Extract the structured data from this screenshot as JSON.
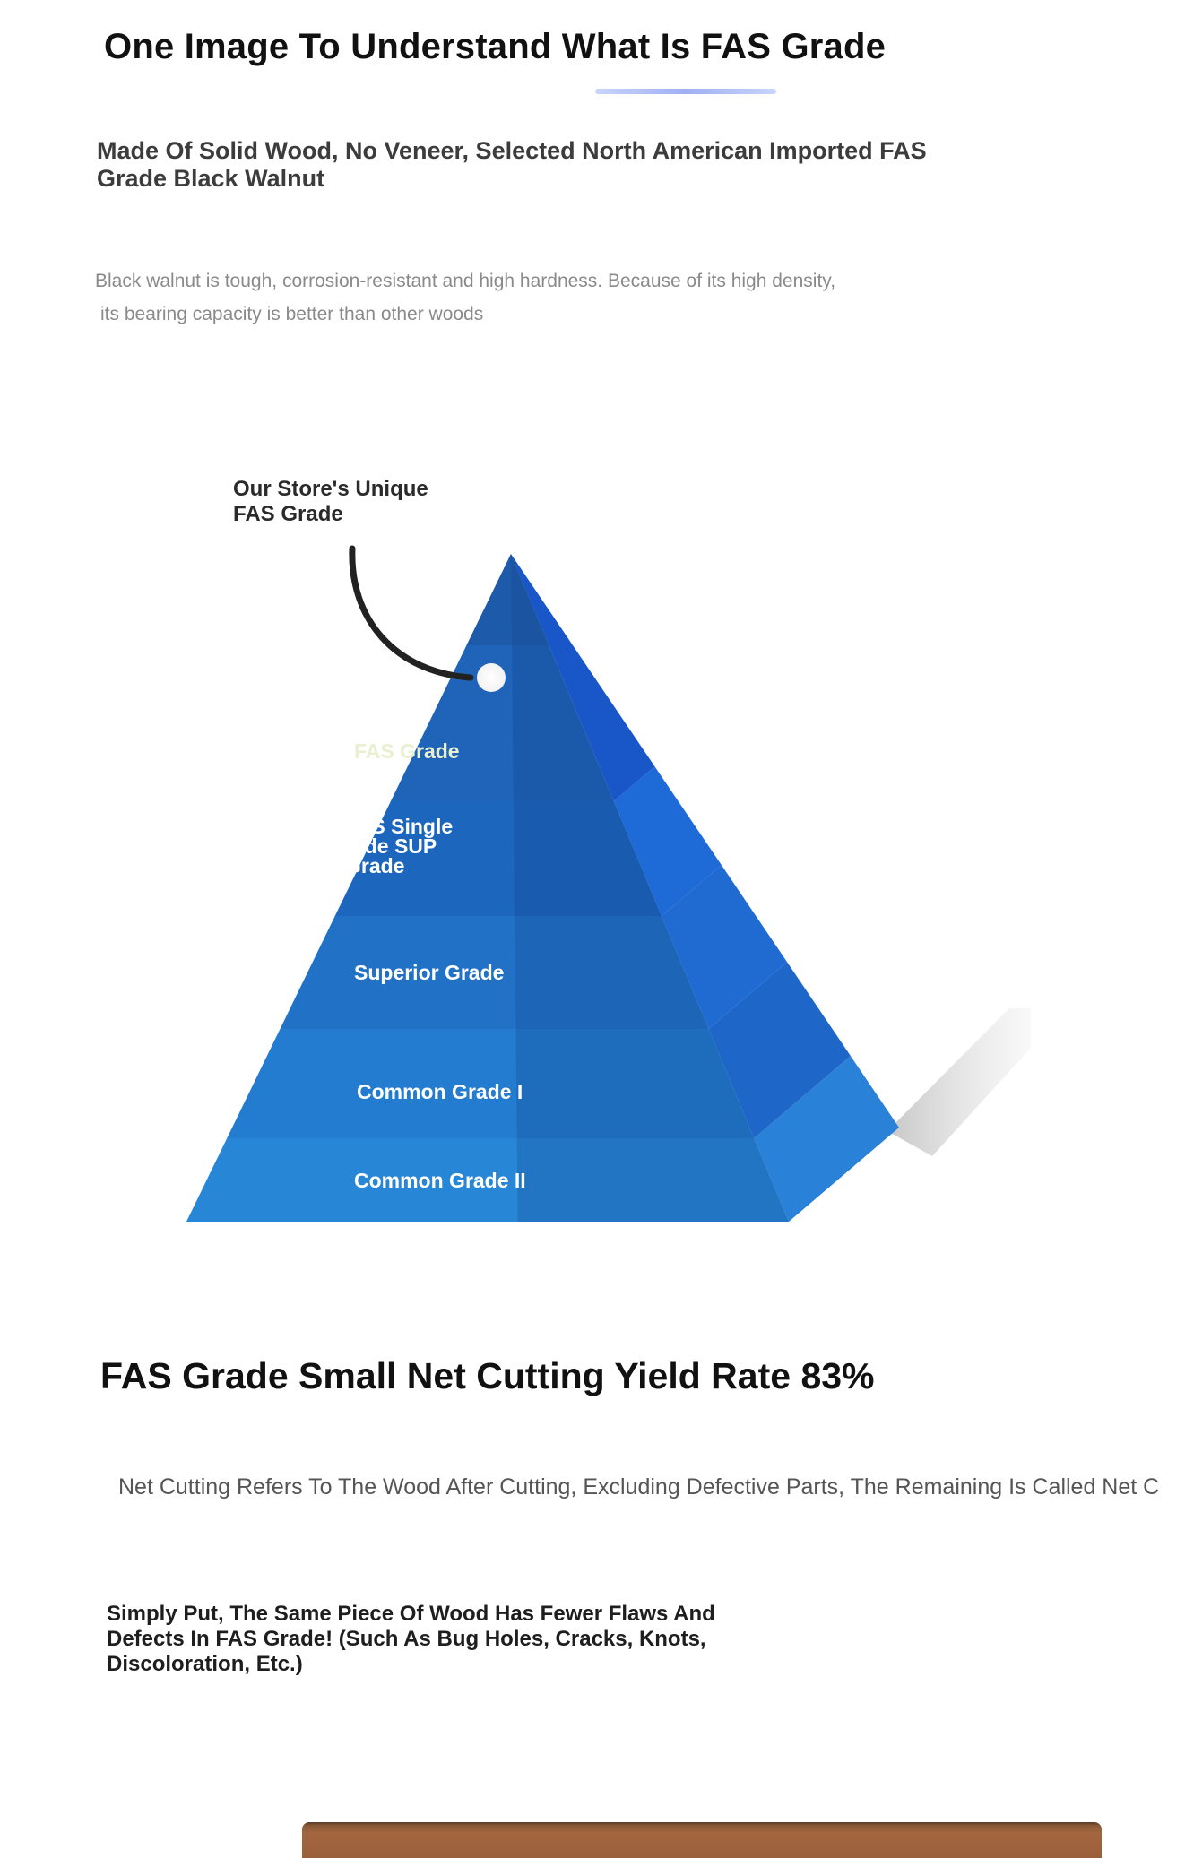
{
  "header": {
    "title": "One Image To Understand What Is FAS Grade"
  },
  "intro": {
    "subtitle": "Made Of Solid Wood, No Veneer, Selected North American Imported FAS Grade Black Walnut",
    "description_line1": "Black walnut is tough, corrosion-resistant and high hardness. Because of its high density,",
    "description_line2": "its bearing capacity is better than other woods"
  },
  "pyramid": {
    "callout": "Our Store's Unique FAS Grade",
    "tiers": [
      {
        "label_lines": [
          "FAS Grade"
        ],
        "front": "#1f64b8",
        "side": "#1957c9"
      },
      {
        "label_lines": [
          "FAS Single",
          "Side SUP",
          "Grade"
        ],
        "front": "#1c66bd",
        "side": "#1e6ad6"
      },
      {
        "label_lines": [
          "Superior Grade"
        ],
        "front": "#2172c6",
        "side": "#1f6bd2"
      },
      {
        "label_lines": [
          "Common Grade I"
        ],
        "front": "#237ccf",
        "side": "#1f66c9"
      },
      {
        "label_lines": [
          "Common Grade II"
        ],
        "front": "#2886d6",
        "side": "#2a82d8"
      }
    ],
    "colors": {
      "label_top": "#e8f0d0",
      "label": "#ffffff",
      "apex": "#1b4f9a"
    }
  },
  "yield": {
    "heading": "FAS Grade Small Net Cutting Yield Rate 83%",
    "net_cutting": "Net Cutting Refers To The Wood After Cutting, Excluding Defective Parts, The Remaining Is Called Net C",
    "simply_put": "Simply Put, The Same Piece Of Wood Has Fewer Flaws And Defects In FAS Grade! (Such As Bug Holes, Cracks, Knots, Discoloration, Etc.)"
  }
}
